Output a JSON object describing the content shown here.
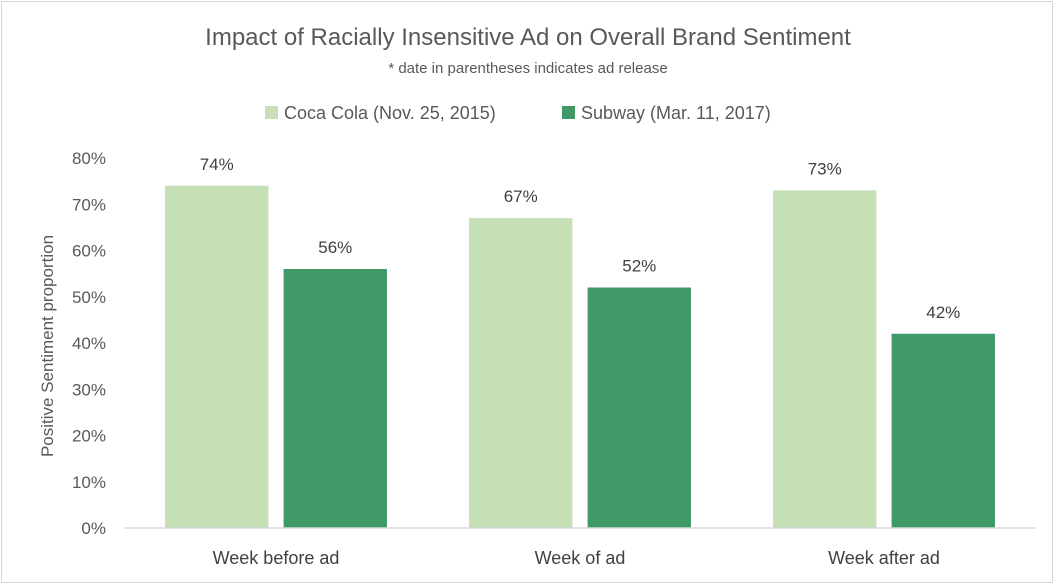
{
  "chart_data": {
    "type": "bar",
    "title": "Impact of Racially Insensitive Ad on Overall Brand Sentiment",
    "subtitle": "* date in parentheses indicates ad release",
    "xlabel": "",
    "ylabel": "Positive Sentiment proportion",
    "categories": [
      "Week before ad",
      "Week of ad",
      "Week after ad"
    ],
    "series": [
      {
        "name": "Coca Cola (Nov. 25, 2015)",
        "values": [
          0.74,
          0.67,
          0.73
        ],
        "labels": [
          "74%",
          "67%",
          "73%"
        ],
        "color": "#c5e0b4"
      },
      {
        "name": "Subway (Mar. 11, 2017)",
        "values": [
          0.56,
          0.52,
          0.42
        ],
        "labels": [
          "56%",
          "52%",
          "42%"
        ],
        "color": "#3f9a68"
      }
    ],
    "yticks": [
      "0%",
      "10%",
      "20%",
      "30%",
      "40%",
      "50%",
      "60%",
      "70%",
      "80%"
    ],
    "ylim": [
      0,
      0.8
    ],
    "grid": false,
    "legend": "top"
  }
}
